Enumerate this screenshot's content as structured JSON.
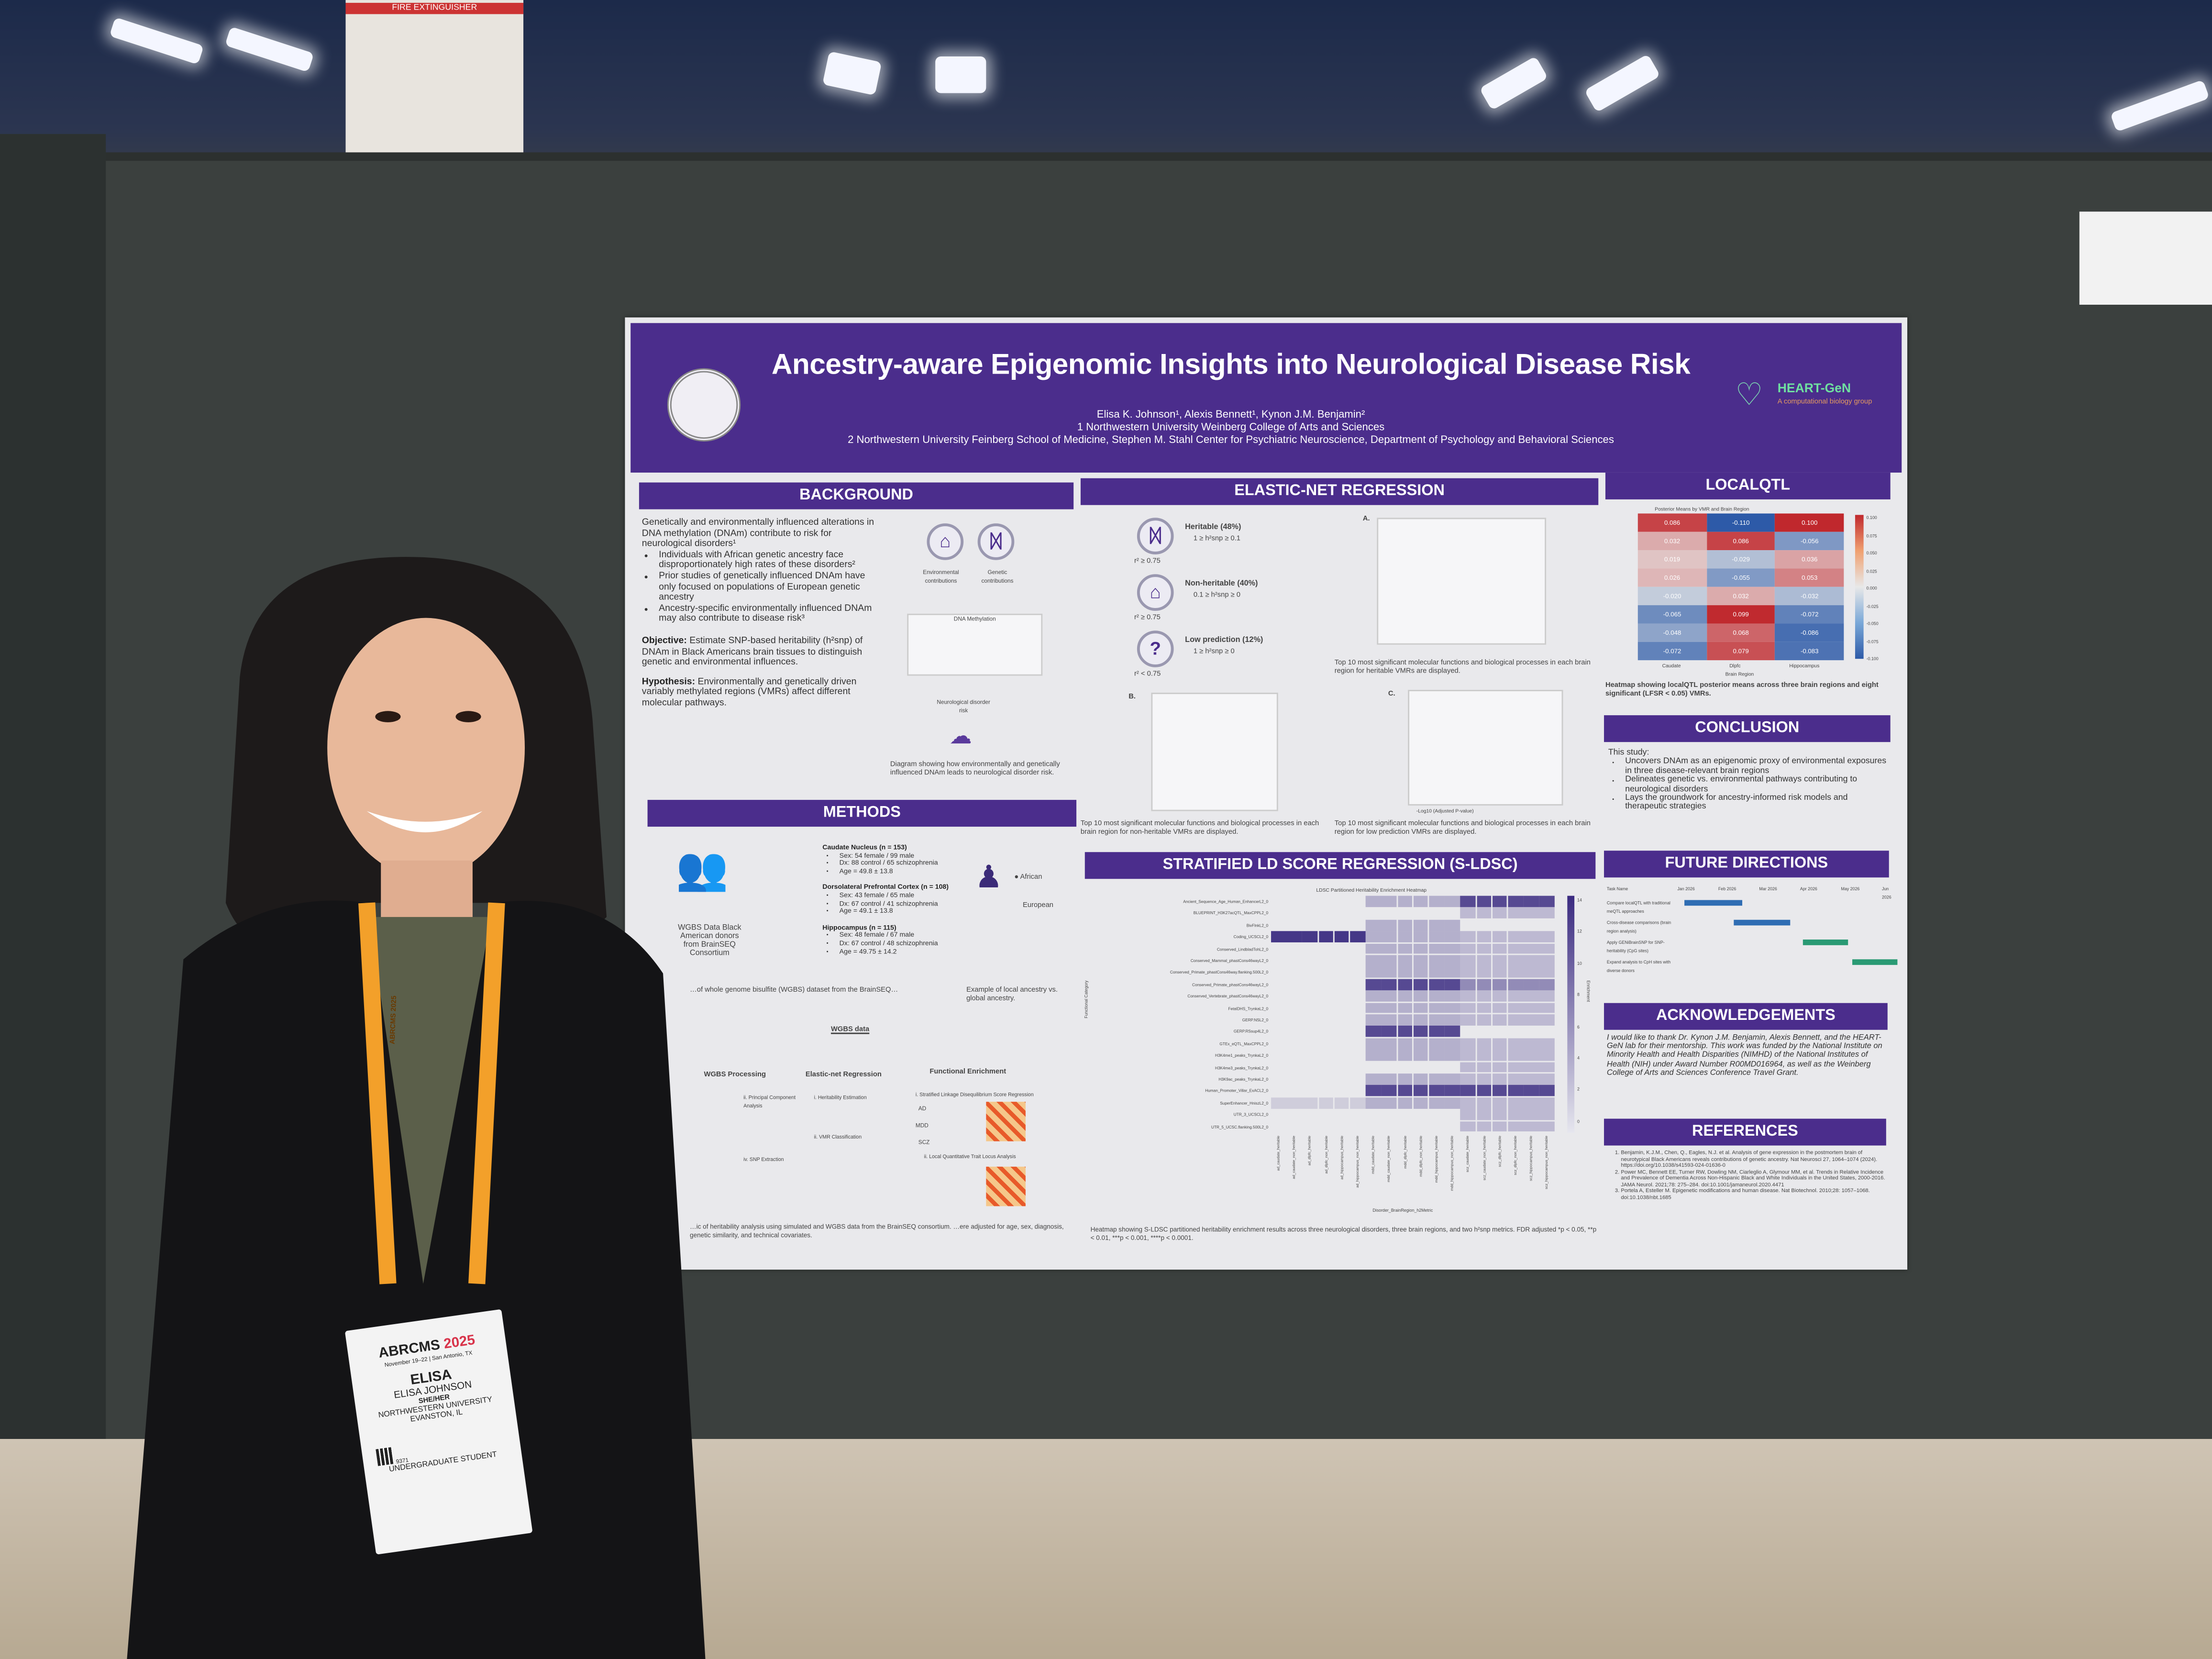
{
  "scene": {
    "extinguisher_sign": "FIRE EXTINGUISHER"
  },
  "poster": {
    "title": "Ancestry-aware Epigenomic Insights into Neurological Disease Risk",
    "authors": "Elisa K. Johnson¹, Alexis Bennett¹, Kynon J.M. Benjamin²",
    "affiliation_1": "1 Northwestern University Weinberg College of Arts and Sciences",
    "affiliation_2": "2 Northwestern University Feinberg School of Medicine, Stephen M. Stahl Center for Psychiatric Neuroscience, Department of Psychology and Behavioral Sciences",
    "lab_logo": {
      "name": "HEART-GeN",
      "tagline": "A computational biology group"
    },
    "background": {
      "header": "BACKGROUND",
      "intro": "Genetically and environmentally influenced alterations in DNA methylation (DNAm) contribute to risk for neurological disorders¹",
      "bullets": [
        "Individuals with African genetic ancestry face disproportionately high rates of these disorders²",
        "Prior studies of genetically influenced DNAm have only focused on populations of European genetic ancestry",
        "Ancestry-specific environmentally influenced DNAm may also contribute to disease risk³"
      ],
      "objective_label": "Objective:",
      "objective": "Estimate SNP-based heritability (h²snp) of DNAm in Black Americans brain tissues to distinguish genetic and environmental influences.",
      "hypothesis_label": "Hypothesis:",
      "hypothesis": "Environmentally and genetically driven variably methylated regions (VMRs) affect different molecular pathways.",
      "diagram_labels": [
        "Environmental contributions",
        "Genetic contributions",
        "DNA Methylation",
        "Neurological disorder risk"
      ],
      "caption": "Diagram showing how environmentally and genetically influenced DNAm leads to neurological disorder risk."
    },
    "elastic_net": {
      "header": "ELASTIC-NET REGRESSION",
      "classes": [
        {
          "label": "Heritable (48%)",
          "range": "1 ≥ h²snp ≥ 0.1",
          "r2": "r² ≥ 0.75",
          "icon": "dna-icon"
        },
        {
          "label": "Non-heritable (40%)",
          "range": "0.1 ≥ h²snp ≥ 0",
          "r2": "r² ≥ 0.75",
          "icon": "house-icon"
        },
        {
          "label": "Low prediction (12%)",
          "range": "1 ≥ h²snp ≥ 0",
          "r2": "r² < 0.75",
          "icon": "question-icon"
        }
      ],
      "panels": [
        "A.",
        "B.",
        "C."
      ],
      "xlabel": "-Log10 (Adjusted P-value)",
      "caption_a": "Top 10 most significant molecular functions and biological processes in each brain region for heritable VMRs are displayed.",
      "caption_b": "Top 10 most significant molecular functions and biological processes in each brain region for non-heritable VMRs are displayed.",
      "caption_c": "Top 10 most significant molecular functions and biological processes in each brain region for low prediction VMRs are displayed."
    },
    "localqtl": {
      "header": "LOCALQTL",
      "chart_title": "Posterior Means by VMR and Brain Region",
      "columns": [
        "Caudate",
        "Dlpfc",
        "Hippocampus"
      ],
      "xlabel": "Brain Region",
      "values": [
        [
          "0.086",
          "-0.110",
          "0.100"
        ],
        [
          "0.032",
          "0.086",
          "-0.056"
        ],
        [
          "0.019",
          "-0.029",
          "0.036"
        ],
        [
          "0.026",
          "-0.055",
          "0.053"
        ],
        [
          "-0.020",
          "0.032",
          "-0.032"
        ],
        [
          "-0.065",
          "0.099",
          "-0.072"
        ],
        [
          "-0.048",
          "0.068",
          "-0.086"
        ],
        [
          "-0.072",
          "0.079",
          "-0.083"
        ]
      ],
      "scale_ticks": [
        "0.100",
        "0.075",
        "0.050",
        "0.025",
        "0.000",
        "-0.025",
        "-0.050",
        "-0.075",
        "-0.100"
      ],
      "caption": "Heatmap showing localQTL posterior means across three brain regions and eight significant (LFSR < 0.05) VMRs."
    },
    "methods": {
      "header": "METHODS",
      "cohort": "WGBS Data Black American donors from BrainSEQ Consortium",
      "regions": [
        {
          "name": "Caudate Nucleus (n = 153)",
          "items": [
            "Sex: 54 female / 99 male",
            "Dx: 88 control / 65 schizophrenia",
            "Age = 49.8 ± 13.8"
          ]
        },
        {
          "name": "Dorsolateral Prefrontal Cortex (n = 108)",
          "items": [
            "Sex: 43 female / 65 male",
            "Dx: 67 control / 41 schizophrenia",
            "Age = 49.1 ± 13.8"
          ]
        },
        {
          "name": "Hippocampus (n = 115)",
          "items": [
            "Sex: 48 female / 67 male",
            "Dx: 67 control / 48 schizophrenia",
            "Age = 49.75 ± 14.2"
          ]
        }
      ],
      "ancestry_legend": [
        "African",
        "European"
      ],
      "dataset_caption": "…of whole genome bisulfite (WGBS) dataset from the BrainSEQ…",
      "ancestry_caption": "Example of local ancestry vs. global ancestry.",
      "wgbs_data": "WGBS data",
      "steps": [
        "WGBS Processing",
        "Elastic-net Regression",
        "Functional Enrichment"
      ],
      "substeps": [
        "ii. Principal Component Analysis",
        "iv. SNP Extraction",
        "i. Heritability Estimation",
        "ii. VMR Classification",
        "i. Stratified Linkage Disequilibrium Score Regression",
        "ii. Local Quantitative Trait Locus Analysis"
      ],
      "disorders": [
        "AD",
        "MDD",
        "SCZ"
      ],
      "caption": "…ic of heritability analysis using simulated and WGBS data from the BrainSEQ consortium. …ere adjusted for age, sex, diagnosis, genetic similarity, and technical covariates."
    },
    "sldsc": {
      "header": "STRATIFIED LD SCORE REGRESSION (S-LDSC)",
      "chart_title": "LDSC Partitioned Heritability Enrichment Heatmap",
      "ylabel": "Functional Category",
      "xlabel": "Disorder_BrainRegion_h2Metric",
      "colorbar_label": "Enrichment",
      "colorbar_ticks": [
        "14",
        "12",
        "10",
        "8",
        "6",
        "4",
        "2",
        "0"
      ],
      "rows": [
        "Ancient_Sequence_Age_Human_EnhancerL2_0",
        "BLUEPRINT_H3K27acQTL_MaxCPPL2_0",
        "BivFlnkL2_0",
        "Coding_UCSCL2_0",
        "Conserved_LindbladTohL2_0",
        "Conserved_Mammal_phastCons46wayL2_0",
        "Conserved_Primate_phastCons46way.flanking.500L2_0",
        "Conserved_Primate_phastCons46wayL2_0",
        "Conserved_Vertebrate_phastCons46wayL2_0",
        "FetalDHS_TrynkaL2_0",
        "GERP.NSL2_0",
        "GERP.RSsup4L2_0",
        "GTEx_eQTL_MaxCPPL2_0",
        "H3K4me1_peaks_TrynkaL2_0",
        "H3K4me3_peaks_TrynkaL2_0",
        "H3K9ac_peaks_TrynkaL2_0",
        "Human_Promoter_Villar_ExACL2_0",
        "SuperEnhancer_HniszL2_0",
        "UTR_3_UCSCL2_0",
        "UTR_5_UCSC.flanking.500L2_0"
      ],
      "columns": [
        "ad_caudate_heritable",
        "ad_caudate_non_heritable",
        "ad_dlpfc_heritable",
        "ad_dlpfc_non_heritable",
        "ad_hippocampus_heritable",
        "ad_hippocampus_non_heritable",
        "mdd_caudate_heritable",
        "mdd_caudate_non_heritable",
        "mdd_dlpfc_heritable",
        "mdd_dlpfc_non_heritable",
        "mdd_hippocampus_heritable",
        "mdd_hippocampus_non_heritable",
        "scz_caudate_heritable",
        "scz_caudate_non_heritable",
        "scz_dlpfc_heritable",
        "scz_dlpfc_non_heritable",
        "scz_hippocampus_heritable",
        "scz_hippocampus_non_heritable"
      ],
      "caption": "Heatmap showing S-LDSC partitioned heritability enrichment results across three neurological disorders, three brain regions, and two h²snp metrics. FDR adjusted *p < 0.05, **p < 0.01, ***p < 0.001, ****p < 0.0001."
    },
    "conclusion": {
      "header": "CONCLUSION",
      "intro": "This study:",
      "bullets": [
        "Uncovers DNAm as an epigenomic proxy of environmental exposures in three disease-relevant brain regions",
        "Delineates genetic vs. environmental pathways contributing to neurological disorders",
        "Lays the groundwork for ancestry-informed risk models and therapeutic strategies"
      ]
    },
    "future": {
      "header": "FUTURE DIRECTIONS",
      "months": [
        "Task Name",
        "Jan 2026",
        "Feb 2026",
        "Mar 2026",
        "Apr 2026",
        "May 2026",
        "Jun 2026"
      ],
      "tasks": [
        {
          "name": "Compare localQTL with traditional meQTL approaches",
          "start": 0.0,
          "end": 1.4,
          "color": "#2f6db3"
        },
        {
          "name": "Cross-disease comparisons (brain region analysis)",
          "start": 1.2,
          "end": 2.6,
          "color": "#2f6db3"
        },
        {
          "name": "Apply GENiBrainSNP for SNP-heritability (CpG sites)",
          "start": 2.9,
          "end": 4.0,
          "color": "#2a9a74"
        },
        {
          "name": "Expand analysis to CpH sites with diverse donors",
          "start": 4.1,
          "end": 5.2,
          "color": "#2a9a74"
        }
      ]
    },
    "acknowledgements": {
      "header": "ACKNOWLEDGEMENTS",
      "text": "I would like to thank Dr. Kynon J.M. Benjamin, Alexis Bennett, and the HEART-GeN lab for their mentorship. This work was funded by the National Institute on Minority Health and Health Disparities (NIMHD) of the National Institutes of Health (NIH) under Award Number R00MD016964, as well as the Weinberg College of Arts and Sciences Conference Travel Grant."
    },
    "references": {
      "header": "REFERENCES",
      "items": [
        "Benjamin, K.J.M., Chen, Q., Eagles, N.J. et al. Analysis of gene expression in the postmortem brain of neurotypical Black Americans reveals contributions of genetic ancestry. Nat Neurosci 27, 1064–1074 (2024). https://doi.org/10.1038/s41593-024-01636-0",
        "Power MC, Bennett EE, Turner RW, Dowling NM, Ciarleglio A, Glymour MM, et al. Trends in Relative Incidence and Prevalence of Dementia Across Non-Hispanic Black and White Individuals in the United States, 2000-2016. JAMA Neurol. 2021;78: 275–284. doi:10.1001/jamaneurol.2020.4471",
        "Portela A, Esteller M. Epigenetic modifications and human disease. Nat Biotechnol. 2010;28: 1057–1068. doi:10.1038/nbt.1685"
      ]
    }
  },
  "badge": {
    "conference": "ABRCMS",
    "year": "2025",
    "dates": "November 19–22 | San Antonio, TX",
    "first_name": "ELISA",
    "full_name": "ELISA JOHNSON",
    "pronouns": "SHE/HER",
    "institution": "NORTHWESTERN UNIVERSITY",
    "location": "EVANSTON, IL",
    "id": "9371",
    "role": "UNDERGRADUATE STUDENT"
  },
  "lanyard": {
    "text": "ABRCMS 2025"
  },
  "colors": {
    "purple": "#4b2d8c",
    "lanyard": "#f3a02a"
  }
}
